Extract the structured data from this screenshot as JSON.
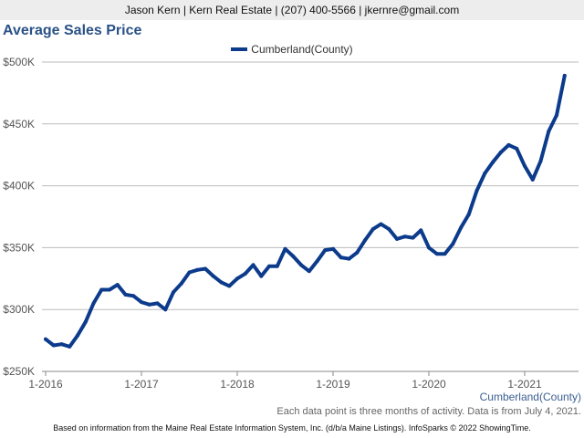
{
  "header": {
    "text": "Jason Kern | Kern Real Estate | (207) 400-5566 | jkernre@gmail.com"
  },
  "title": "Average Sales Price",
  "note": "Each data point is three months of activity. Data is from July 4, 2021.",
  "footer": "Based on information from the Maine Real Estate Information System, Inc. (d/b/a Maine Listings). InfoSparks © 2022 ShowingTime.",
  "colors": {
    "series": "#0c3b8c",
    "grid": "#bbbbbb",
    "axis_label": "#3b5f92"
  },
  "chart_data": {
    "type": "line",
    "title": "Average Sales Price",
    "x_label": "Cumberland(County)",
    "ylim": [
      250000,
      500000
    ],
    "y_ticks": [
      250000,
      300000,
      350000,
      400000,
      450000,
      500000
    ],
    "y_tick_labels": [
      "$250K",
      "$300K",
      "$350K",
      "$400K",
      "$450K",
      "$500K"
    ],
    "x_ticks": [
      "1-2016",
      "1-2017",
      "1-2018",
      "1-2019",
      "1-2020",
      "1-2021"
    ],
    "x_tick_positions": [
      0,
      12,
      24,
      36,
      48,
      60
    ],
    "legend_position": "top-center",
    "grid": true,
    "series": [
      {
        "name": "Cumberland(County)",
        "x": [
          "1-2016",
          "2-2016",
          "3-2016",
          "4-2016",
          "5-2016",
          "6-2016",
          "7-2016",
          "8-2016",
          "9-2016",
          "10-2016",
          "11-2016",
          "12-2016",
          "1-2017",
          "2-2017",
          "3-2017",
          "4-2017",
          "5-2017",
          "6-2017",
          "7-2017",
          "8-2017",
          "9-2017",
          "10-2017",
          "11-2017",
          "12-2017",
          "1-2018",
          "2-2018",
          "3-2018",
          "4-2018",
          "5-2018",
          "6-2018",
          "7-2018",
          "8-2018",
          "9-2018",
          "10-2018",
          "11-2018",
          "12-2018",
          "1-2019",
          "2-2019",
          "3-2019",
          "4-2019",
          "5-2019",
          "6-2019",
          "7-2019",
          "8-2019",
          "9-2019",
          "10-2019",
          "11-2019",
          "12-2019",
          "1-2020",
          "2-2020",
          "3-2020",
          "4-2020",
          "5-2020",
          "6-2020",
          "7-2020",
          "8-2020",
          "9-2020",
          "10-2020",
          "11-2020",
          "12-2020",
          "1-2021",
          "2-2021",
          "3-2021",
          "4-2021",
          "5-2021",
          "6-2021"
        ],
        "values": [
          276000,
          271000,
          272000,
          270000,
          279000,
          290000,
          305000,
          316000,
          316000,
          320000,
          312000,
          311000,
          306000,
          304000,
          305000,
          300000,
          314000,
          321000,
          330000,
          332000,
          333000,
          327000,
          322000,
          319000,
          325000,
          329000,
          336000,
          327000,
          335000,
          335000,
          349000,
          343000,
          336000,
          331000,
          339000,
          348000,
          349000,
          342000,
          341000,
          346000,
          356000,
          365000,
          369000,
          365000,
          357000,
          359000,
          358000,
          364000,
          350000,
          345000,
          345000,
          353000,
          366000,
          377000,
          396000,
          410000,
          419000,
          427000,
          433000,
          430000,
          416000,
          405000,
          420000,
          444000,
          457000,
          489000
        ]
      }
    ]
  }
}
